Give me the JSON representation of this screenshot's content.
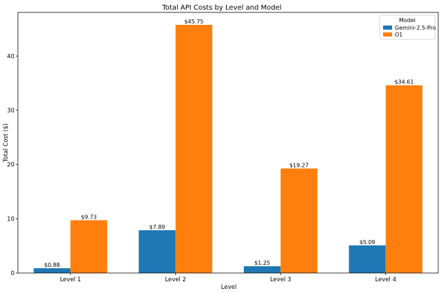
{
  "chart_data": {
    "type": "bar",
    "title": "Total API Costs by Level and Model",
    "xlabel": "Level",
    "ylabel": "Total Cost ($)",
    "categories": [
      "Level 1",
      "Level 2",
      "Level 3",
      "Level 4"
    ],
    "series": [
      {
        "name": "Gemini-2.5-Pro",
        "color": "#1f77b4",
        "values": [
          0.88,
          7.89,
          1.25,
          5.09
        ],
        "labels": [
          "$0.88",
          "$7.89",
          "$1.25",
          "$5.09"
        ]
      },
      {
        "name": "O1",
        "color": "#ff7f0e",
        "values": [
          9.73,
          45.75,
          19.27,
          34.61
        ],
        "labels": [
          "$9.73",
          "$45.75",
          "$19.27",
          "$34.61"
        ]
      }
    ],
    "ylim": [
      0,
      48.04
    ],
    "yticks": [
      0,
      10,
      20,
      30,
      40
    ],
    "legend": {
      "title": "Model",
      "position": "top-right"
    },
    "grid": false
  }
}
